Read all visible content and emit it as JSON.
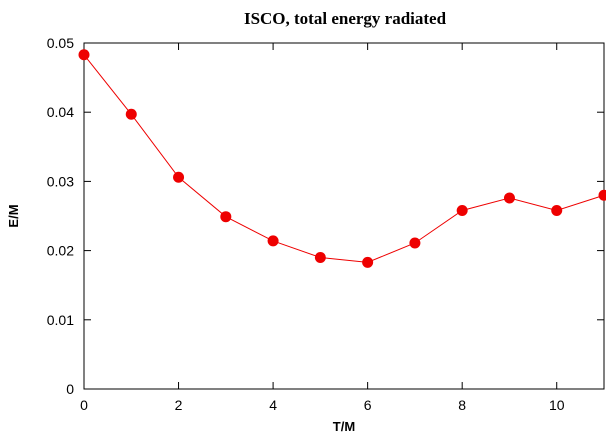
{
  "chart_data": {
    "type": "line",
    "title": "ISCO, total energy radiated",
    "xlabel": "T/M",
    "ylabel": "E/M",
    "xlim": [
      0,
      11
    ],
    "ylim": [
      0,
      0.05
    ],
    "xticks": [
      0,
      2,
      4,
      6,
      8,
      10
    ],
    "yticks": [
      0,
      0.01,
      0.02,
      0.03,
      0.04,
      0.05
    ],
    "xtick_labels": [
      "0",
      "2",
      "4",
      "6",
      "8",
      "10"
    ],
    "ytick_labels": [
      "0",
      "0.01",
      "0.02",
      "0.03",
      "0.04",
      "0.05"
    ],
    "grid": false,
    "legend": "none",
    "series": [
      {
        "color": "#ee0000",
        "marker": "circle",
        "x": [
          0,
          1,
          2,
          3,
          4,
          5,
          6,
          7,
          8,
          9,
          10,
          11
        ],
        "y": [
          0.0483,
          0.0397,
          0.0306,
          0.0249,
          0.0214,
          0.019,
          0.0183,
          0.0211,
          0.0258,
          0.0276,
          0.0258,
          0.028
        ]
      }
    ]
  }
}
